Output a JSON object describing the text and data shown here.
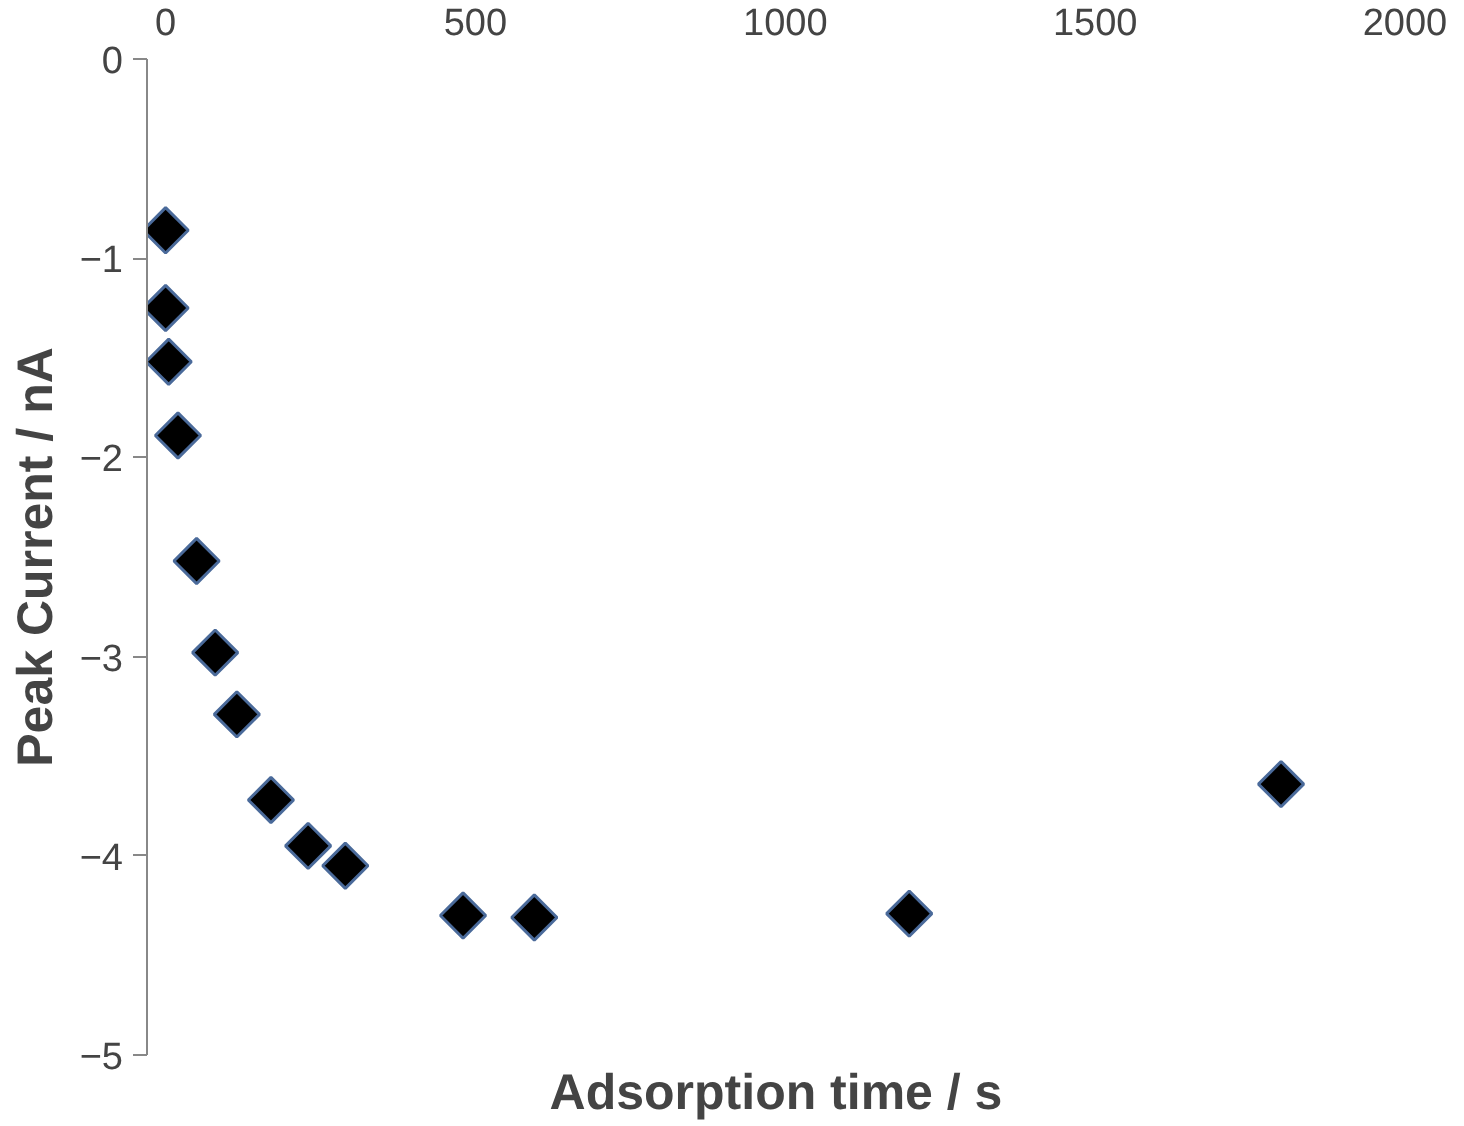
{
  "chart_data": {
    "type": "scatter",
    "xlabel": "Adsorption time / s",
    "ylabel": "Peak Current / nA",
    "x": [
      0,
      0,
      5,
      20,
      50,
      80,
      115,
      170,
      230,
      290,
      480,
      595,
      1200,
      1800
    ],
    "values": [
      -0.86,
      -1.25,
      -1.52,
      -1.89,
      -2.52,
      -2.98,
      -3.29,
      -3.72,
      -3.95,
      -4.05,
      -4.3,
      -4.31,
      -4.29,
      -3.64
    ],
    "color": "#000000",
    "xlim": [
      -30,
      2000
    ],
    "ylim": [
      -5,
      0
    ],
    "xticks": [
      0,
      500,
      1000,
      1500,
      2000
    ],
    "yticks": [
      -5,
      -4,
      -3,
      -2,
      -1,
      0
    ],
    "marker": "diamond",
    "grid": false
  }
}
